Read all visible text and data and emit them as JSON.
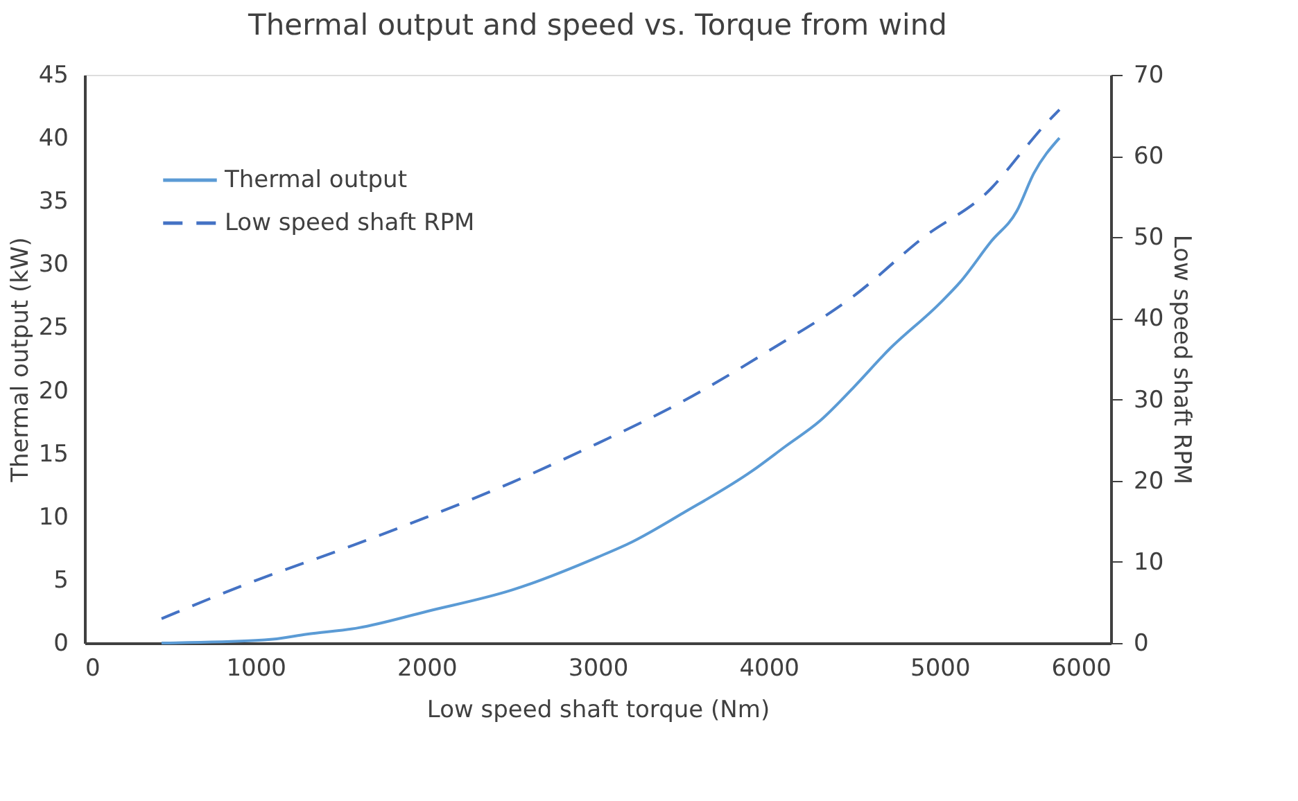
{
  "chart_data": {
    "type": "line",
    "title": "Thermal output and speed vs. Torque from wind",
    "xlabel": "Low speed shaft torque (Nm)",
    "ylabel": "Thermal output (kW)",
    "y2label": "Low speed shaft RPM",
    "xlim": [
      0,
      6000
    ],
    "xticks": [
      0,
      1000,
      2000,
      3000,
      4000,
      5000,
      6000
    ],
    "ylim": [
      0,
      45
    ],
    "yticks": [
      0,
      5,
      10,
      15,
      20,
      25,
      30,
      35,
      40,
      45
    ],
    "y2lim": [
      0,
      70
    ],
    "y2ticks": [
      0,
      10,
      20,
      30,
      40,
      50,
      60,
      70
    ],
    "grid": false,
    "legend": "top left",
    "series": [
      {
        "name": "Thermal output",
        "color": "#5b9bd5",
        "line_style": "solid",
        "x": [
          450,
          1000,
          1100,
          1300,
          1600,
          2000,
          2500,
          3000,
          3200,
          3500,
          3900,
          4100,
          4300,
          4500,
          4700,
          5000,
          5120,
          5300,
          5450,
          5550,
          5700
        ],
        "values": [
          0,
          0.2,
          0.3,
          0.7,
          1.2,
          2.5,
          4.2,
          6.8,
          8,
          10.3,
          13.6,
          15.6,
          17.6,
          20.3,
          23.2,
          26.9,
          28.6,
          31.8,
          34.2,
          37.2,
          40
        ]
      },
      {
        "name": "Low speed shaft RPM",
        "color": "#4472c4",
        "line_style": "dashed",
        "axis": "y2",
        "x": [
          450,
          1000,
          1500,
          2000,
          2500,
          3000,
          3500,
          4000,
          4500,
          4900,
          5300,
          5500,
          5600,
          5700
        ],
        "values": [
          3,
          7.7,
          11.5,
          15.5,
          19.8,
          24.6,
          29.8,
          36,
          42.8,
          49.9,
          56,
          61,
          63.5,
          65.7
        ]
      }
    ]
  }
}
